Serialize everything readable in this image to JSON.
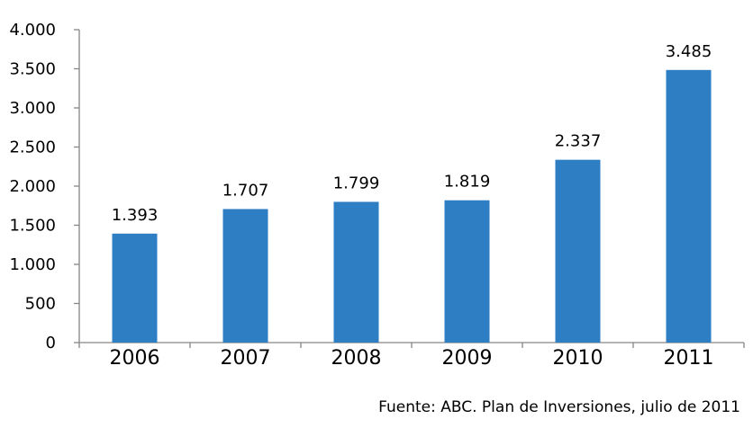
{
  "chart_data": {
    "type": "bar",
    "categories": [
      "2006",
      "2007",
      "2008",
      "2009",
      "2010",
      "2011"
    ],
    "values": [
      1393,
      1707,
      1799,
      1819,
      2337,
      3485
    ],
    "value_labels": [
      "1.393",
      "1.707",
      "1.799",
      "1.819",
      "2.337",
      "3.485"
    ],
    "ylim": [
      0,
      4000
    ],
    "yticks": [
      0,
      500,
      1000,
      1500,
      2000,
      2500,
      3000,
      3500,
      4000
    ],
    "ytick_labels": [
      "0",
      "500",
      "1.000",
      "1.500",
      "2.000",
      "2.500",
      "3.000",
      "3.500",
      "4.000"
    ],
    "bar_color": "#2E7EC4",
    "grid": false,
    "legend": "none",
    "source": "Fuente: ABC. Plan de Inversiones, julio de 2011"
  }
}
